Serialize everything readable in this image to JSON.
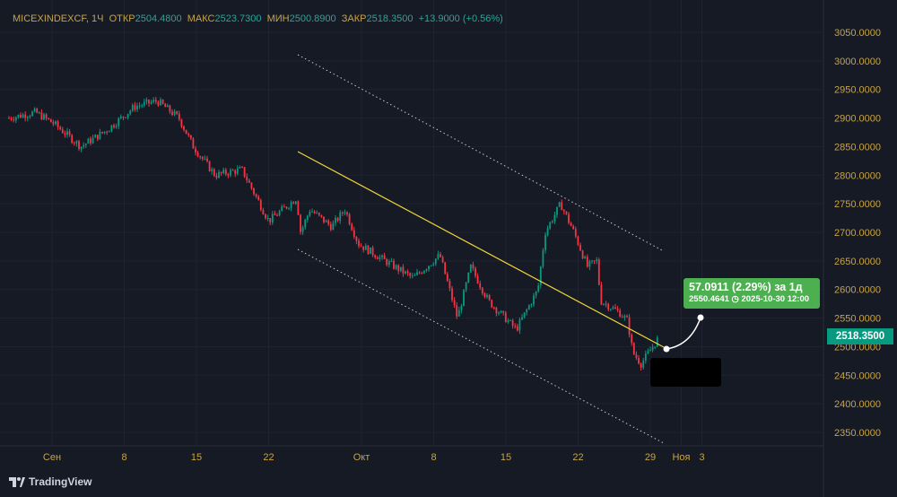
{
  "legend": {
    "symbol": "MICEXINDEXCF, 1Ч",
    "open_label": "ОТКР",
    "open": "2504.4800",
    "high_label": "МАКС",
    "high": "2523.7300",
    "low_label": "МИН",
    "low": "2500.8900",
    "close_label": "ЗАКР",
    "close": "2518.3500",
    "change": "+13.9000 (+0.56%)"
  },
  "current_price": "2518.3500",
  "measure": {
    "line1": "57.0911 (2.29%) за 1д",
    "line2": "2550.4641 ◷ 2025-10-30  12:00"
  },
  "brand": "TradingView",
  "colors": {
    "up": "#089981",
    "down": "#f23645",
    "trend": "#f0d43a",
    "tip": "#4caf50",
    "axis_text": "#c9a445"
  },
  "chart_data": {
    "type": "candlestick",
    "title": "MICEXINDEXCF, 1Ч",
    "y_ticks": [
      "3050.0000",
      "3000.0000",
      "2950.0000",
      "2900.0000",
      "2850.0000",
      "2800.0000",
      "2750.0000",
      "2700.0000",
      "2650.0000",
      "2600.0000",
      "2550.0000",
      "2500.0000",
      "2450.0000",
      "2400.0000",
      "2350.0000"
    ],
    "ylim": [
      2350,
      3050
    ],
    "x_ticks": [
      {
        "label": "Сен",
        "day": 0
      },
      {
        "label": "8",
        "day": 7
      },
      {
        "label": "15",
        "day": 14
      },
      {
        "label": "22",
        "day": 21
      },
      {
        "label": "Окт",
        "day": 30
      },
      {
        "label": "8",
        "day": 37
      },
      {
        "label": "15",
        "day": 44
      },
      {
        "label": "22",
        "day": 51
      },
      {
        "label": "29",
        "day": 58
      },
      {
        "label": "Ноя",
        "day": 61
      },
      {
        "label": "3",
        "day": 63
      }
    ],
    "xlim": [
      -4.5,
      75.2
    ],
    "approx_path": [
      [
        -4.2,
        2900
      ],
      [
        -1.6,
        2910
      ],
      [
        0.2,
        2890
      ],
      [
        2.8,
        2850
      ],
      [
        5.4,
        2880
      ],
      [
        8,
        2920
      ],
      [
        10.2,
        2930
      ],
      [
        12.3,
        2900
      ],
      [
        13.7,
        2850
      ],
      [
        15.8,
        2800
      ],
      [
        18.4,
        2810
      ],
      [
        21,
        2720
      ],
      [
        23.7,
        2760
      ],
      [
        24.1,
        2700
      ],
      [
        25,
        2740
      ],
      [
        27.1,
        2710
      ],
      [
        28.4,
        2740
      ],
      [
        29.7,
        2680
      ],
      [
        32.3,
        2650
      ],
      [
        35,
        2620
      ],
      [
        37.6,
        2660
      ],
      [
        39.3,
        2550
      ],
      [
        40.6,
        2640
      ],
      [
        42.3,
        2580
      ],
      [
        45,
        2530
      ],
      [
        47.1,
        2600
      ],
      [
        47.8,
        2700
      ],
      [
        49.3,
        2750
      ],
      [
        50.6,
        2700
      ],
      [
        51.9,
        2640
      ],
      [
        52.8,
        2650
      ],
      [
        53.2,
        2580
      ],
      [
        55,
        2560
      ],
      [
        55.8,
        2545
      ],
      [
        56.3,
        2490
      ],
      [
        57.1,
        2470
      ],
      [
        58.9,
        2518
      ]
    ]
  }
}
